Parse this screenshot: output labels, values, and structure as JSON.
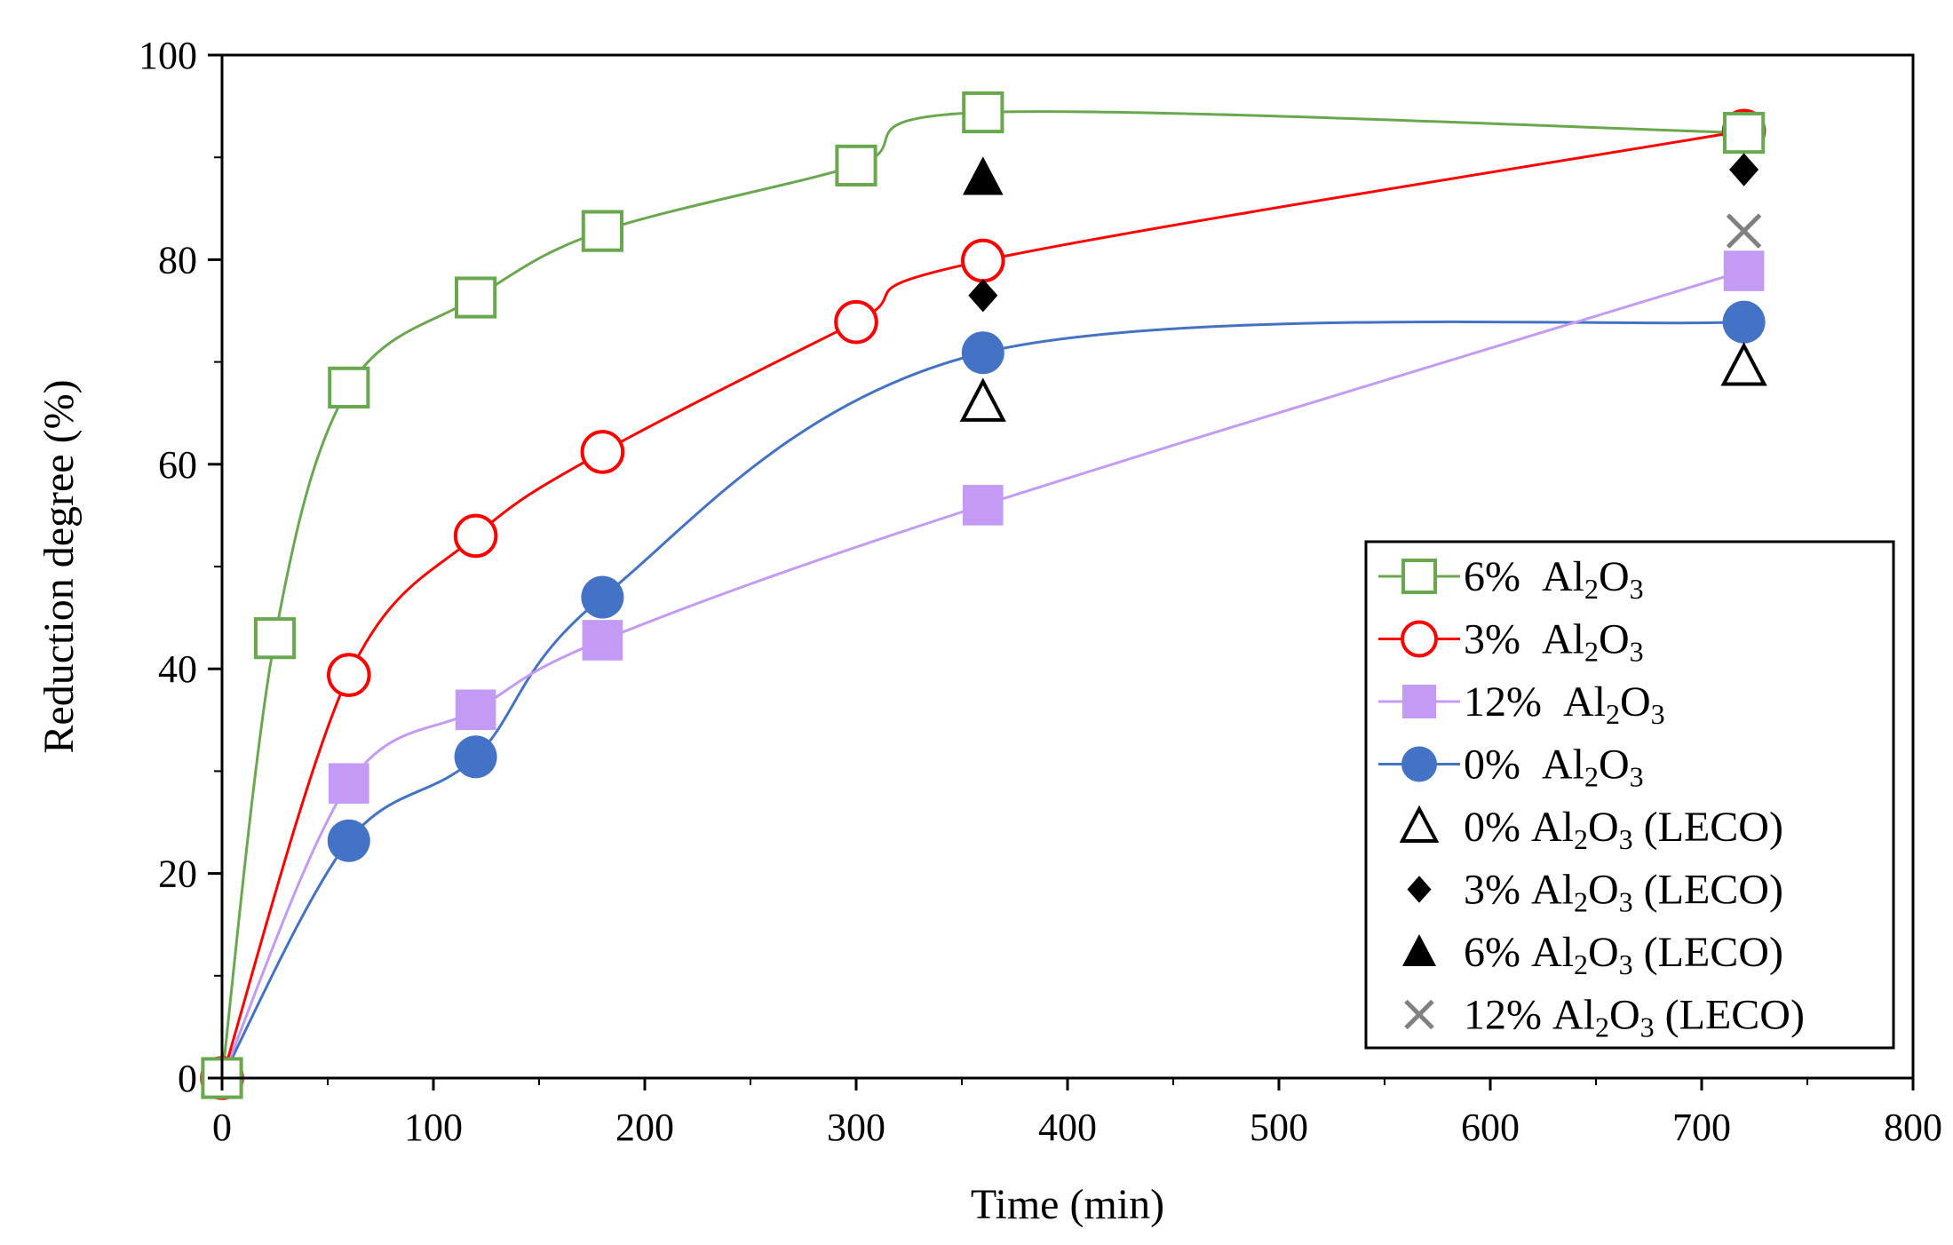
{
  "chart_data": {
    "type": "line",
    "title": "",
    "xlabel": "Time (min)",
    "ylabel": "Reduction degree (%)",
    "xlim": [
      0,
      800
    ],
    "ylim": [
      0,
      100
    ],
    "xticks": [
      0,
      100,
      200,
      300,
      400,
      500,
      600,
      700,
      800
    ],
    "yticks": [
      0,
      20,
      40,
      60,
      80,
      100
    ],
    "grid": false,
    "legend_position": "bottom-right",
    "series": [
      {
        "name": "6% Al2O3",
        "pct": "6%",
        "suffix": "",
        "color": "#6aa84f",
        "marker": "square-open",
        "line": true,
        "x": [
          0,
          25,
          60,
          120,
          180,
          300,
          360,
          720
        ],
        "y": [
          0,
          43,
          67.5,
          76.3,
          82.8,
          89.2,
          94.4,
          92.4
        ]
      },
      {
        "name": "3% Al2O3",
        "pct": "3%",
        "suffix": "",
        "color": "#ff0000",
        "marker": "circle-open",
        "line": true,
        "x": [
          0,
          60,
          120,
          180,
          300,
          360,
          720
        ],
        "y": [
          0,
          39.4,
          53,
          61.2,
          73.9,
          79.9,
          92.6
        ]
      },
      {
        "name": "12% Al2O3",
        "pct": "12%",
        "suffix": "",
        "color": "#c39bf5",
        "marker": "square-filled",
        "line": true,
        "x": [
          0,
          60,
          120,
          180,
          360,
          720
        ],
        "y": [
          0,
          28.8,
          36,
          42.8,
          56,
          78.9
        ]
      },
      {
        "name": "0% Al2O3",
        "pct": "0%",
        "suffix": "",
        "color": "#4472c4",
        "marker": "circle-filled",
        "line": true,
        "x": [
          0,
          60,
          120,
          180,
          360,
          720
        ],
        "y": [
          0,
          23.2,
          31.4,
          47,
          70.9,
          73.9
        ]
      },
      {
        "name": "0% Al2O3 (LECO)",
        "pct": "0%",
        "suffix": "(LECO)",
        "color": "#000000",
        "marker": "triangle-open",
        "line": false,
        "x": [
          360,
          720
        ],
        "y": [
          66,
          69.5
        ]
      },
      {
        "name": "3% Al2O3 (LECO)",
        "pct": "3%",
        "suffix": "(LECO)",
        "color": "#000000",
        "marker": "diamond-filled",
        "line": false,
        "x": [
          360,
          720
        ],
        "y": [
          76.5,
          88.8
        ]
      },
      {
        "name": "6% Al2O3 (LECO)",
        "pct": "6%",
        "suffix": "(LECO)",
        "color": "#000000",
        "marker": "triangle-filled",
        "line": false,
        "x": [
          360
        ],
        "y": [
          88
        ]
      },
      {
        "name": "12% Al2O3 (LECO)",
        "pct": "12%",
        "suffix": "(LECO)",
        "color": "#808080",
        "marker": "x",
        "line": false,
        "x": [
          720
        ],
        "y": [
          82.8
        ]
      }
    ]
  }
}
